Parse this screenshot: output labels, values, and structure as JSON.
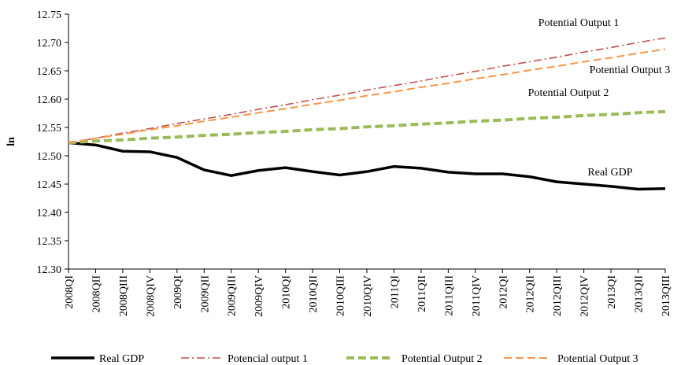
{
  "chart_data": {
    "type": "line",
    "y_label": "ln",
    "categories": [
      "2008QI",
      "2008QII",
      "2008QIII",
      "2008QIV",
      "2009QI",
      "2009QII",
      "2009QIII",
      "2009QIV",
      "2010QI",
      "2010QII",
      "2010QIII",
      "2010QIV",
      "2011QI",
      "2011QII",
      "2011QIII",
      "2011QIV",
      "2012QI",
      "2012QII",
      "2012QIII",
      "2012QIV",
      "2013QI",
      "2013QII",
      "2013QIII"
    ],
    "series": [
      {
        "name": "Real GDP",
        "color": "#000000",
        "dash": "solid",
        "values": [
          12.523,
          12.519,
          12.508,
          12.507,
          12.497,
          12.475,
          12.465,
          12.474,
          12.479,
          12.472,
          12.466,
          12.472,
          12.481,
          12.478,
          12.471,
          12.468,
          12.468,
          12.463,
          12.454,
          12.45,
          12.446,
          12.441,
          12.442
        ]
      },
      {
        "name": "Potencial output 1",
        "color": "#c0504d",
        "dash": "dash-dot",
        "values": [
          12.523,
          12.531,
          12.54,
          12.548,
          12.557,
          12.565,
          12.573,
          12.582,
          12.59,
          12.599,
          12.607,
          12.616,
          12.624,
          12.632,
          12.641,
          12.649,
          12.658,
          12.666,
          12.674,
          12.683,
          12.691,
          12.7,
          12.708
        ]
      },
      {
        "name": "Potential Output 2",
        "color": "#9bbb59",
        "dash": "dashed",
        "values": [
          12.523,
          12.526,
          12.528,
          12.531,
          12.533,
          12.536,
          12.538,
          12.541,
          12.543,
          12.546,
          12.548,
          12.551,
          12.553,
          12.556,
          12.558,
          12.561,
          12.563,
          12.566,
          12.568,
          12.571,
          12.573,
          12.576,
          12.578
        ]
      },
      {
        "name": "Potential Output 3",
        "color": "#f79646",
        "dash": "dashed",
        "values": [
          12.523,
          12.531,
          12.538,
          12.546,
          12.553,
          12.561,
          12.568,
          12.576,
          12.583,
          12.591,
          12.598,
          12.606,
          12.613,
          12.621,
          12.628,
          12.636,
          12.643,
          12.651,
          12.658,
          12.666,
          12.673,
          12.681,
          12.688
        ]
      }
    ],
    "annotations": [
      "Potential Output 1",
      "Potential Output 3",
      "Potential Output 2",
      "Real GDP"
    ],
    "ylim": [
      12.3,
      12.75
    ],
    "yticks": [
      {
        "value": 12.3,
        "label": "12.30"
      },
      {
        "value": 12.35,
        "label": "12.35"
      },
      {
        "value": 12.4,
        "label": "12.40"
      },
      {
        "value": 12.45,
        "label": "12.45"
      },
      {
        "value": 12.5,
        "label": "12.50"
      },
      {
        "value": 12.55,
        "label": "12.55"
      },
      {
        "value": 12.6,
        "label": "12.60"
      },
      {
        "value": 12.65,
        "label": "12.65"
      },
      {
        "value": 12.7,
        "label": "12.70"
      },
      {
        "value": 12.75,
        "label": "12.75"
      }
    ],
    "grid": false,
    "legend": "bottom"
  }
}
